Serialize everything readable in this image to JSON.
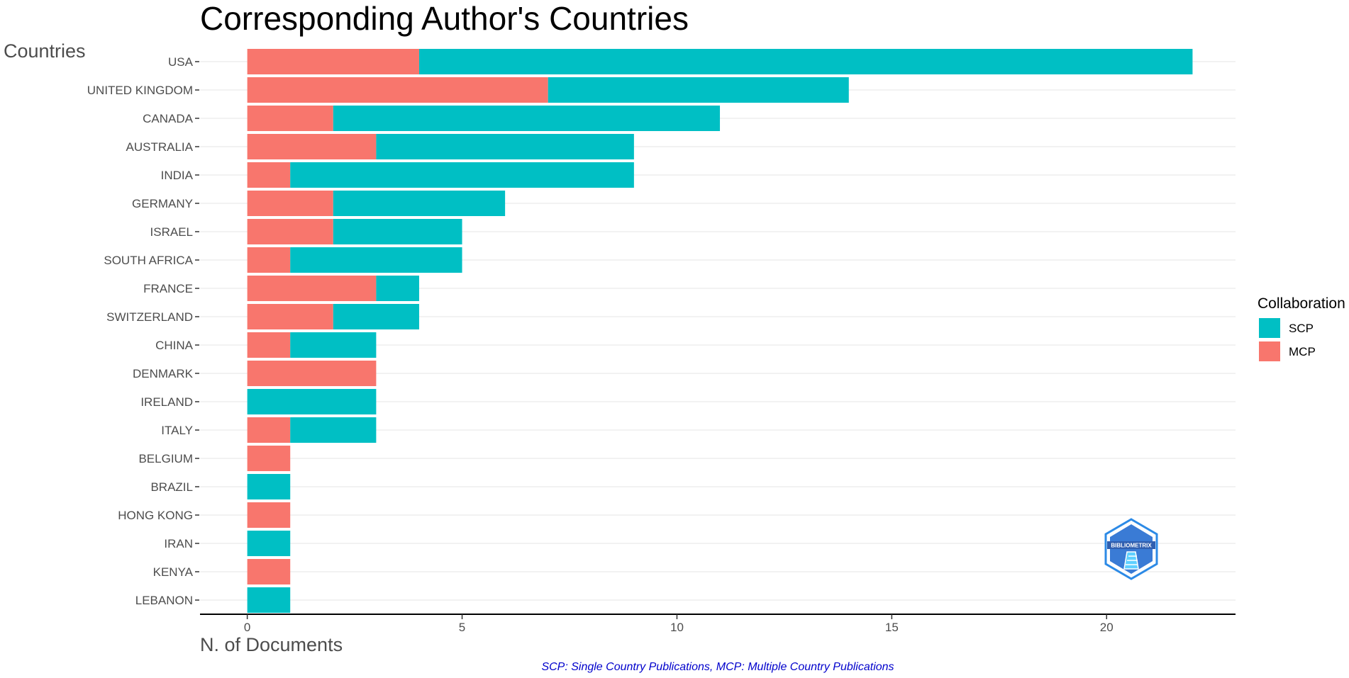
{
  "chart_data": {
    "type": "bar",
    "orientation": "horizontal",
    "stacked": true,
    "title": "Corresponding Author's Countries",
    "xlabel": "N. of Documents",
    "ylabel": "Countries",
    "caption": "SCP: Single Country Publications, MCP: Multiple Country Publications",
    "categories": [
      "USA",
      "UNITED KINGDOM",
      "CANADA",
      "AUSTRALIA",
      "INDIA",
      "GERMANY",
      "ISRAEL",
      "SOUTH AFRICA",
      "FRANCE",
      "SWITZERLAND",
      "CHINA",
      "DENMARK",
      "IRELAND",
      "ITALY",
      "BELGIUM",
      "BRAZIL",
      "HONG KONG",
      "IRAN",
      "KENYA",
      "LEBANON"
    ],
    "series": [
      {
        "name": "MCP",
        "color": "#F8766D",
        "values": [
          4,
          7,
          2,
          3,
          1,
          2,
          2,
          1,
          3,
          2,
          1,
          3,
          0,
          1,
          1,
          0,
          1,
          0,
          1,
          0
        ]
      },
      {
        "name": "SCP",
        "color": "#00BFC4",
        "values": [
          18,
          7,
          9,
          6,
          8,
          4,
          3,
          4,
          1,
          2,
          2,
          0,
          3,
          2,
          0,
          1,
          0,
          1,
          0,
          1
        ]
      }
    ],
    "xlim": [
      -1.1,
      23
    ],
    "xticks": [
      0,
      5,
      10,
      15,
      20
    ],
    "grid": true,
    "legend": {
      "title": "Collaboration",
      "position": "right",
      "order": [
        "SCP",
        "MCP"
      ]
    },
    "logo": "BIBLIOMETRIX"
  }
}
